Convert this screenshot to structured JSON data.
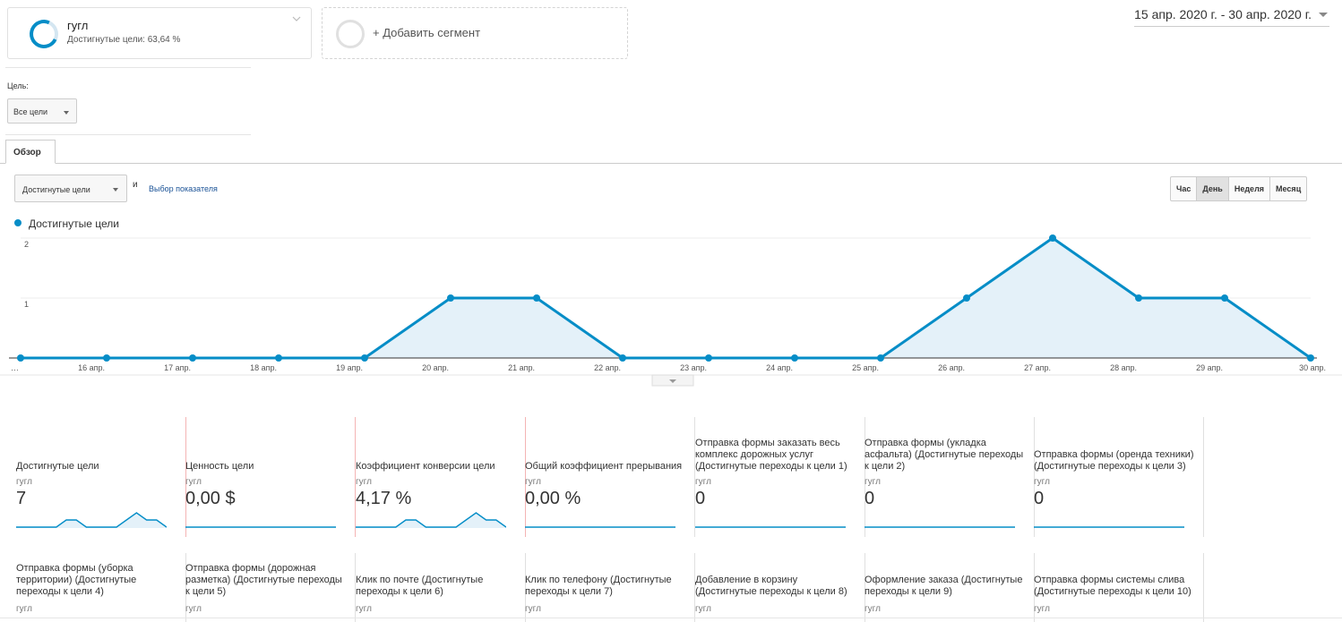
{
  "segment": {
    "name": "гугл",
    "subtitle": "Достигнутые цели: 63,64 %"
  },
  "add_segment": {
    "label": "+ Добавить сегмент"
  },
  "date_range": "15 апр. 2020 г. - 30 апр. 2020 г.",
  "goal_filter": {
    "label": "Цель:",
    "value": "Все цели"
  },
  "tabs": [
    {
      "label": "Обзор"
    }
  ],
  "metric_selector": {
    "value": "Достигнутые цели",
    "and": "и",
    "choose_link": "Выбор показателя"
  },
  "granularity": [
    {
      "label": "Час",
      "active": false
    },
    {
      "label": "День",
      "active": true
    },
    {
      "label": "Неделя",
      "active": false
    },
    {
      "label": "Месяц",
      "active": false
    }
  ],
  "colors": {
    "accent": "#058dc7",
    "link": "#1a5296"
  },
  "chart_data": {
    "type": "area",
    "legend": "Достигнутые цели",
    "legend_placement": "top-left",
    "categories": [
      "…",
      "16 апр.",
      "17 апр.",
      "18 апр.",
      "19 апр.",
      "20 апр.",
      "21 апр.",
      "22 апр.",
      "23 апр.",
      "24 апр.",
      "25 апр.",
      "26 апр.",
      "27 апр.",
      "28 апр.",
      "29 апр.",
      "30 апр."
    ],
    "series": [
      {
        "name": "Достигнутые цели",
        "values": [
          0,
          0,
          0,
          0,
          0,
          1,
          1,
          0,
          0,
          0,
          0,
          1,
          2,
          1,
          1,
          0
        ]
      }
    ],
    "y_ticks": [
      "1",
      "2"
    ],
    "ylim": [
      0,
      2
    ],
    "grid": true
  },
  "scorecards": [
    {
      "title": "Достигнутые цели",
      "segment": "гугл",
      "value": "7",
      "spark": "wave"
    },
    {
      "title": "Ценность цели",
      "segment": "гугл",
      "value": "0,00 $",
      "spark": "flat"
    },
    {
      "title": "Коэффициент конверсии цели",
      "segment": "гугл",
      "value": "4,17 %",
      "spark": "wave"
    },
    {
      "title": "Общий коэффициент прерывания",
      "segment": "гугл",
      "value": "0,00 %",
      "spark": "flat"
    },
    {
      "title": "Отправка формы заказать весь комплекс дорожных услуг (Достигнутые переходы к цели 1)",
      "segment": "гугл",
      "value": "0",
      "spark": "flat"
    },
    {
      "title": "Отправка формы (укладка асфальта) (Достигнутые переходы к цели 2)",
      "segment": "гугл",
      "value": "0",
      "spark": "flat"
    },
    {
      "title": "Отправка формы (оренда техники) (Достигнутые переходы к цели 3)",
      "segment": "гугл",
      "value": "0",
      "spark": "flat"
    },
    {
      "title": "Отправка формы (уборка территории) (Достигнутые переходы к цели 4)",
      "segment": "гугл"
    },
    {
      "title": "Отправка формы (дорожная разметка) (Достигнутые переходы к цели 5)",
      "segment": "гугл"
    },
    {
      "title": "Клик по почте (Достигнутые переходы к цели 6)",
      "segment": "гугл"
    },
    {
      "title": "Клик по телефону (Достигнутые переходы к цели 7)",
      "segment": "гугл"
    },
    {
      "title": "Добавление в корзину (Достигнутые переходы к цели 8)",
      "segment": "гугл"
    },
    {
      "title": "Оформление заказа (Достигнутые переходы к цели 9)",
      "segment": "гугл"
    },
    {
      "title": "Отправка формы системы слива (Достигнутые переходы к цели 10)",
      "segment": "гугл"
    }
  ]
}
